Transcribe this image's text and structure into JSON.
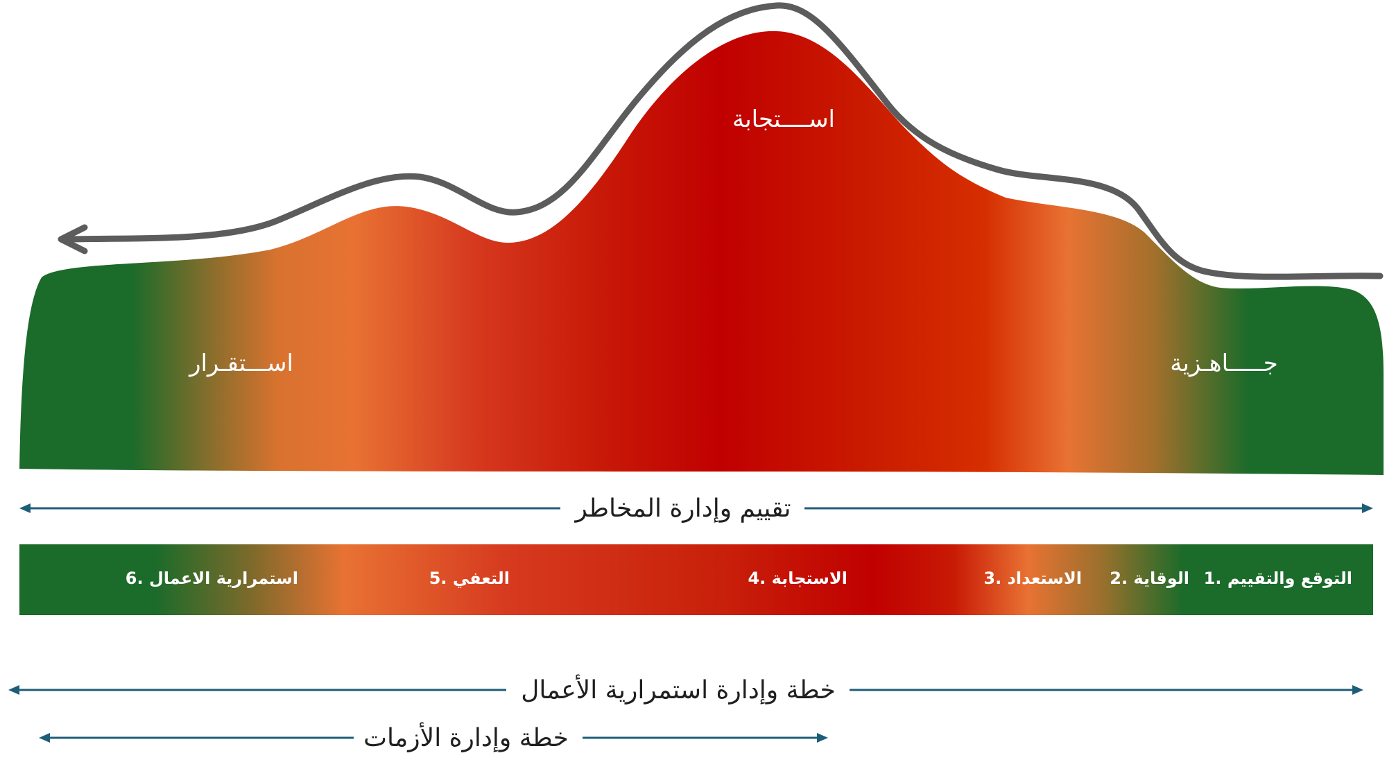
{
  "colors": {
    "green": "#1b6b2a",
    "orange": "#e87233",
    "red": "#c10000",
    "curve": "#5c5c5c",
    "arrow_line": "#1e5d78",
    "text_on_color": "#ffffff",
    "text_dark": "#1f1f1f"
  },
  "mountain": {
    "label_response": "اســــتجابة",
    "label_readiness": "جـــــاهـزية",
    "label_stability": "اســـتقـرار"
  },
  "phases": [
    {
      "label": "1. التوقع والتقييم"
    },
    {
      "label": "2. الوقاية"
    },
    {
      "label": "3. الاستعداد"
    },
    {
      "label": "4. الاستجابة"
    },
    {
      "label": "5. التعفي"
    },
    {
      "label": "6. استمرارية الاعمال"
    }
  ],
  "spans": {
    "risk": "تقييم وإدارة المخاطر",
    "business_continuity": "خطة وإدارة استمرارية الأعمال",
    "crisis": "خطة وإدارة الأزمات"
  }
}
